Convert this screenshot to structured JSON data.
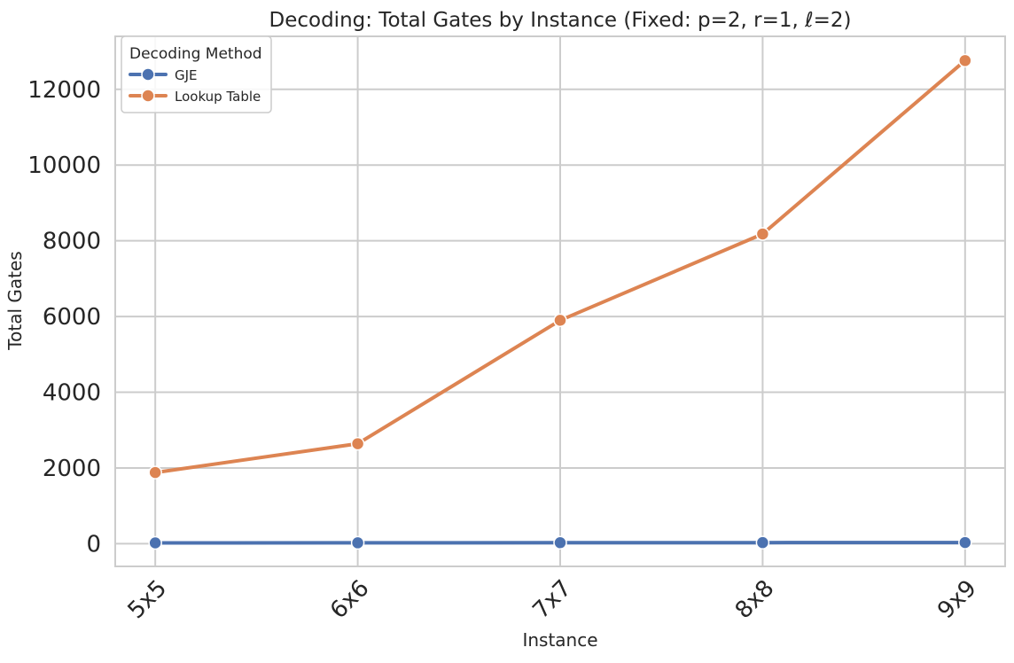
{
  "chart_data": {
    "type": "line",
    "title": "Decoding: Total Gates by Instance (Fixed: p=2, r=1, ℓ=2)",
    "xlabel": "Instance",
    "ylabel": "Total Gates",
    "categories": [
      "5x5",
      "6x6",
      "7x7",
      "8x8",
      "9x9"
    ],
    "ylim": [
      -600,
      13400
    ],
    "yticks": [
      0,
      2000,
      4000,
      6000,
      8000,
      10000,
      12000
    ],
    "grid": true,
    "legend": {
      "title": "Decoding Method",
      "position": "top-left"
    },
    "series": [
      {
        "name": "GJE",
        "color": "#4c72b0",
        "values": [
          20,
          22,
          25,
          28,
          30
        ]
      },
      {
        "name": "Lookup Table",
        "color": "#dd8452",
        "values": [
          1880,
          2640,
          5900,
          8180,
          12760
        ]
      }
    ]
  }
}
